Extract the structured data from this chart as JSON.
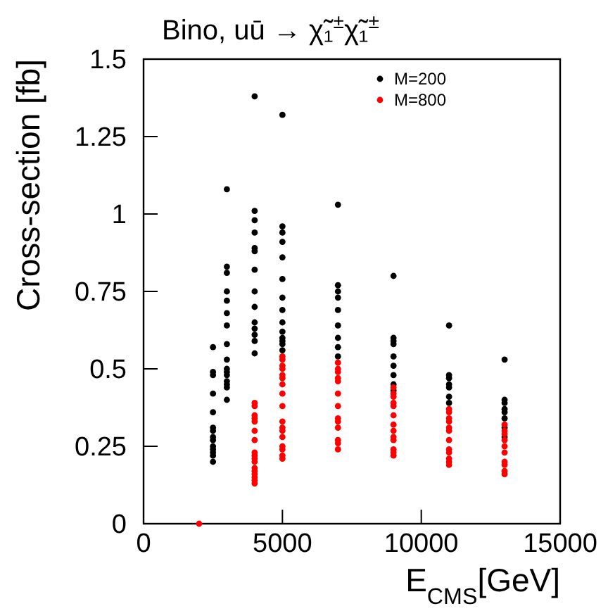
{
  "chart_data": {
    "type": "scatter",
    "title": "Bino,  uū → χ̃₁$^{±}$χ̃₁$^{±}$",
    "xlabel": "E$_{CMS}$[GeV]",
    "ylabel": "Cross-section [fb]",
    "xlim": [
      0,
      15000
    ],
    "ylim": [
      0,
      1.5
    ],
    "xticks": [
      0,
      5000,
      10000,
      15000
    ],
    "yticks": [
      0,
      {
        "value": 0.25,
        "label": "0.25"
      },
      {
        "value": 0.5,
        "label": "0.5"
      },
      {
        "value": 0.75,
        "label": "0.75"
      },
      1,
      {
        "value": 1.25,
        "label": "1.25"
      },
      {
        "value": 1.5,
        "label": "1.5"
      }
    ],
    "grid": false,
    "legend": "top right",
    "marker": "circle",
    "series": [
      {
        "name": "M=200",
        "color": "#000000",
        "x": [
          2500,
          2500,
          2500,
          2500,
          2500,
          2500,
          2500,
          2500,
          2500,
          2500,
          2500,
          2500,
          2500,
          2500,
          3000,
          3000,
          3000,
          3000,
          3000,
          3000,
          3000,
          3000,
          3000,
          3000,
          3000,
          3000,
          3000,
          3000,
          3000,
          3000,
          4000,
          4000,
          4000,
          4000,
          4000,
          4000,
          4000,
          4000,
          4000,
          4000,
          4000,
          4000,
          4000,
          4000,
          5000,
          5000,
          5000,
          5000,
          5000,
          5000,
          5000,
          5000,
          5000,
          5000,
          5000,
          5000,
          5000,
          5000,
          7000,
          7000,
          7000,
          7000,
          7000,
          7000,
          7000,
          7000,
          7000,
          9000,
          9000,
          9000,
          9000,
          9000,
          9000,
          9000,
          9000,
          9000,
          11000,
          11000,
          11000,
          11000,
          11000,
          11000,
          11000,
          13000,
          13000,
          13000,
          13000,
          13000,
          13000,
          13000,
          13000
        ],
        "values": [
          0.57,
          0.49,
          0.48,
          0.42,
          0.36,
          0.31,
          0.3,
          0.28,
          0.27,
          0.25,
          0.24,
          0.23,
          0.22,
          0.2,
          1.08,
          0.83,
          0.81,
          0.75,
          0.72,
          0.68,
          0.64,
          0.58,
          0.53,
          0.5,
          0.49,
          0.48,
          0.46,
          0.45,
          0.44,
          0.4,
          1.38,
          1.01,
          0.98,
          0.94,
          0.89,
          0.88,
          0.82,
          0.75,
          0.7,
          0.65,
          0.63,
          0.61,
          0.59,
          0.55,
          1.32,
          0.96,
          0.94,
          0.91,
          0.86,
          0.79,
          0.73,
          0.69,
          0.65,
          0.62,
          0.6,
          0.59,
          0.58,
          0.56,
          1.03,
          0.77,
          0.75,
          0.73,
          0.69,
          0.64,
          0.6,
          0.57,
          0.54,
          0.8,
          0.6,
          0.59,
          0.58,
          0.54,
          0.51,
          0.48,
          0.45,
          0.43,
          0.64,
          0.48,
          0.47,
          0.45,
          0.44,
          0.41,
          0.39,
          0.53,
          0.4,
          0.39,
          0.37,
          0.36,
          0.34,
          0.31,
          0.28
        ]
      },
      {
        "name": "M=800",
        "color": "#ff0000",
        "x": [
          2000,
          4000,
          4000,
          4000,
          4000,
          4000,
          4000,
          4000,
          4000,
          4000,
          4000,
          4000,
          4000,
          4000,
          4000,
          4000,
          4000,
          4000,
          5000,
          5000,
          5000,
          5000,
          5000,
          5000,
          5000,
          5000,
          5000,
          5000,
          5000,
          5000,
          5000,
          5000,
          5000,
          5000,
          5000,
          7000,
          7000,
          7000,
          7000,
          7000,
          7000,
          7000,
          7000,
          7000,
          7000,
          7000,
          7000,
          7000,
          9000,
          9000,
          9000,
          9000,
          9000,
          9000,
          9000,
          9000,
          9000,
          9000,
          9000,
          9000,
          9000,
          11000,
          11000,
          11000,
          11000,
          11000,
          11000,
          11000,
          11000,
          11000,
          11000,
          11000,
          11000,
          13000,
          13000,
          13000,
          13000,
          13000,
          13000,
          13000,
          13000,
          13000,
          13000
        ],
        "values": [
          0,
          0.39,
          0.38,
          0.35,
          0.34,
          0.33,
          0.3,
          0.27,
          0.23,
          0.22,
          0.21,
          0.2,
          0.18,
          0.17,
          0.16,
          0.15,
          0.14,
          0.13,
          0.54,
          0.53,
          0.51,
          0.5,
          0.48,
          0.47,
          0.45,
          0.42,
          0.38,
          0.33,
          0.31,
          0.3,
          0.28,
          0.25,
          0.24,
          0.22,
          0.21,
          0.52,
          0.5,
          0.49,
          0.47,
          0.46,
          0.42,
          0.38,
          0.34,
          0.33,
          0.31,
          0.27,
          0.26,
          0.24,
          0.44,
          0.42,
          0.41,
          0.39,
          0.38,
          0.35,
          0.32,
          0.3,
          0.28,
          0.27,
          0.24,
          0.23,
          0.22,
          0.37,
          0.36,
          0.34,
          0.33,
          0.31,
          0.3,
          0.27,
          0.24,
          0.23,
          0.21,
          0.2,
          0.19,
          0.32,
          0.3,
          0.29,
          0.27,
          0.25,
          0.23,
          0.2,
          0.19,
          0.17,
          0.16
        ]
      }
    ]
  }
}
